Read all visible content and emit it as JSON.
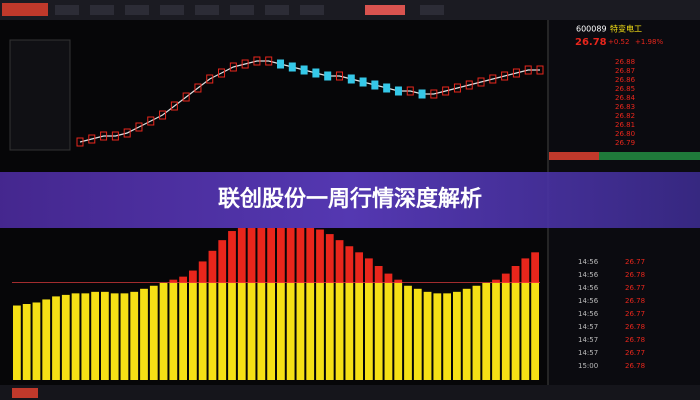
{
  "banner": {
    "title": "联创股份一周行情深度解析"
  },
  "quote": {
    "code": "600089",
    "name": "特变电工",
    "price": "26.78",
    "change": "+0.52",
    "percent": "+1.98%",
    "ladder": [
      "26.88",
      "26.87",
      "26.86",
      "26.85",
      "26.84",
      "26.83",
      "26.82",
      "26.81",
      "26.80",
      "26.79"
    ],
    "ticks": [
      {
        "time": "14:56",
        "price": "26.77"
      },
      {
        "time": "14:56",
        "price": "26.78"
      },
      {
        "time": "14:56",
        "price": "26.77"
      },
      {
        "time": "14:56",
        "price": "26.78"
      },
      {
        "time": "14:56",
        "price": "26.77"
      },
      {
        "time": "14:57",
        "price": "26.78"
      },
      {
        "time": "14:57",
        "price": "26.78"
      },
      {
        "time": "14:57",
        "price": "26.77"
      },
      {
        "time": "15:00",
        "price": "26.78"
      }
    ]
  },
  "price": {
    "ylim": [
      24,
      28
    ],
    "color": "#e0e0e0",
    "values": [
      24.6,
      24.7,
      24.8,
      24.8,
      24.9,
      25.1,
      25.3,
      25.5,
      25.8,
      26.1,
      26.4,
      26.7,
      26.9,
      27.1,
      27.2,
      27.3,
      27.3,
      27.2,
      27.1,
      27.0,
      26.9,
      26.8,
      26.8,
      26.7,
      26.6,
      26.5,
      26.4,
      26.3,
      26.3,
      26.2,
      26.2,
      26.3,
      26.4,
      26.5,
      26.6,
      26.7,
      26.8,
      26.9,
      27.0,
      27.0
    ]
  },
  "indicator": {
    "ylim": [
      0,
      100
    ],
    "threshold": 64,
    "low_color": "#f5e015",
    "high_color": "#e8261c",
    "values": [
      49,
      50,
      51,
      53,
      55,
      56,
      57,
      57,
      58,
      58,
      57,
      57,
      58,
      60,
      62,
      64,
      66,
      68,
      72,
      78,
      85,
      92,
      98,
      100,
      100,
      100,
      100,
      100,
      100,
      100,
      100,
      99,
      96,
      92,
      88,
      84,
      80,
      75,
      70,
      66,
      62,
      60,
      58,
      57,
      57,
      58,
      60,
      62,
      64,
      66,
      70,
      75,
      80,
      84
    ]
  }
}
